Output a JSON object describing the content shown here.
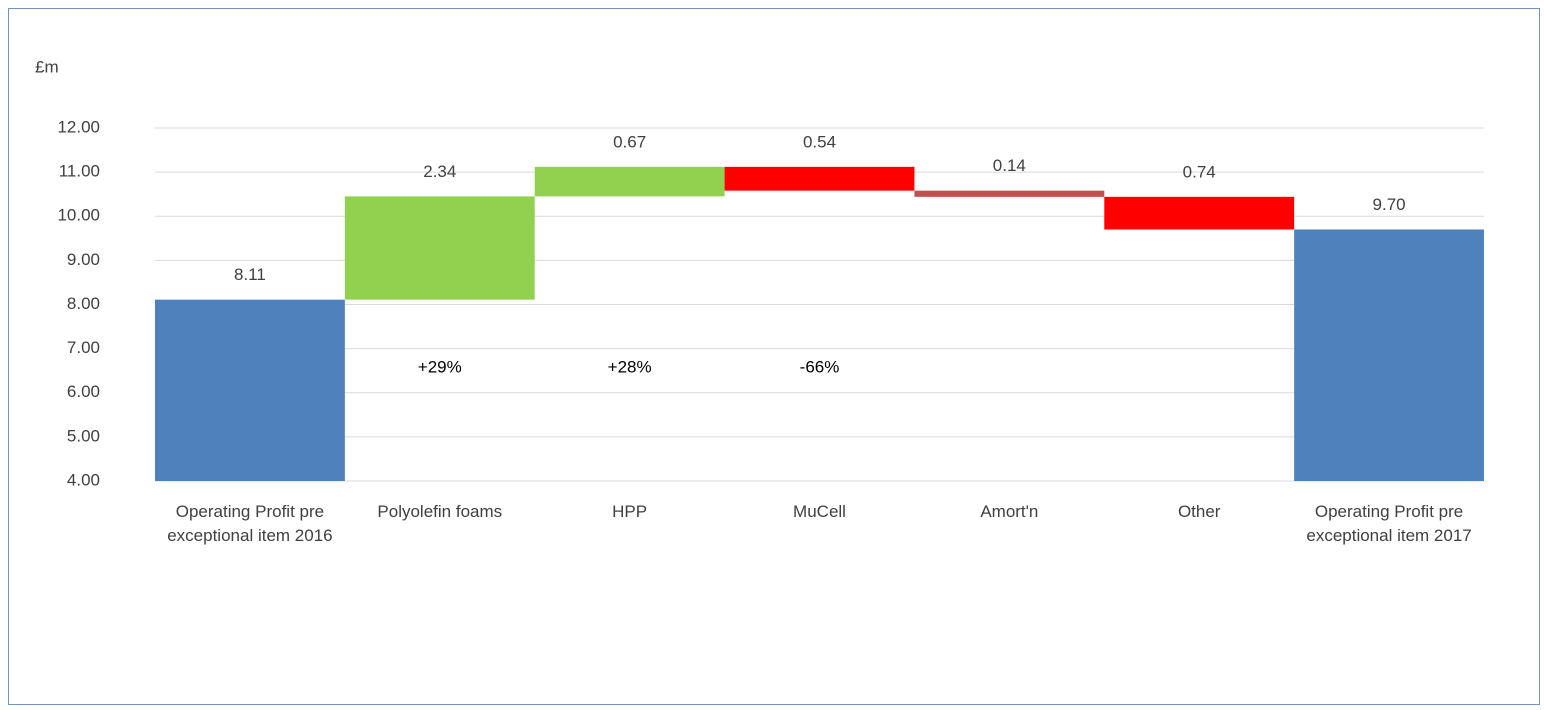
{
  "chart_data": {
    "type": "waterfall",
    "y_label": "£m",
    "categories": [
      "Operating Profit pre exceptional item 2016",
      "Polyolefin foams",
      "HPP",
      "MuCell",
      "Amort'n",
      "Other",
      "Operating Profit pre exceptional item 2017"
    ],
    "values": [
      8.11,
      2.34,
      0.67,
      -0.54,
      -0.14,
      -0.74,
      9.7
    ],
    "value_labels": [
      "8.11",
      "2.34",
      "0.67",
      "0.54",
      "0.14",
      "0.74",
      "9.70"
    ],
    "totals": [
      true,
      false,
      false,
      false,
      false,
      false,
      true
    ],
    "colors": [
      "#4f81bd",
      "#92d050",
      "#92d050",
      "#ff0000",
      "#c0504d",
      "#ff0000",
      "#4f81bd"
    ],
    "change_labels": [
      null,
      "+29%",
      "+28%",
      "-66%",
      null,
      null,
      null
    ],
    "ylim": [
      4,
      12
    ],
    "yticks": [
      {
        "value": 4,
        "label": "4.00"
      },
      {
        "value": 5,
        "label": "5.00"
      },
      {
        "value": 6,
        "label": "6.00"
      },
      {
        "value": 7,
        "label": "7.00"
      },
      {
        "value": 8,
        "label": "8.00"
      },
      {
        "value": 9,
        "label": "9.00"
      },
      {
        "value": 10,
        "label": "10.00"
      },
      {
        "value": 11,
        "label": "11.00"
      },
      {
        "value": 12,
        "label": "12.00"
      }
    ],
    "grid": true
  }
}
